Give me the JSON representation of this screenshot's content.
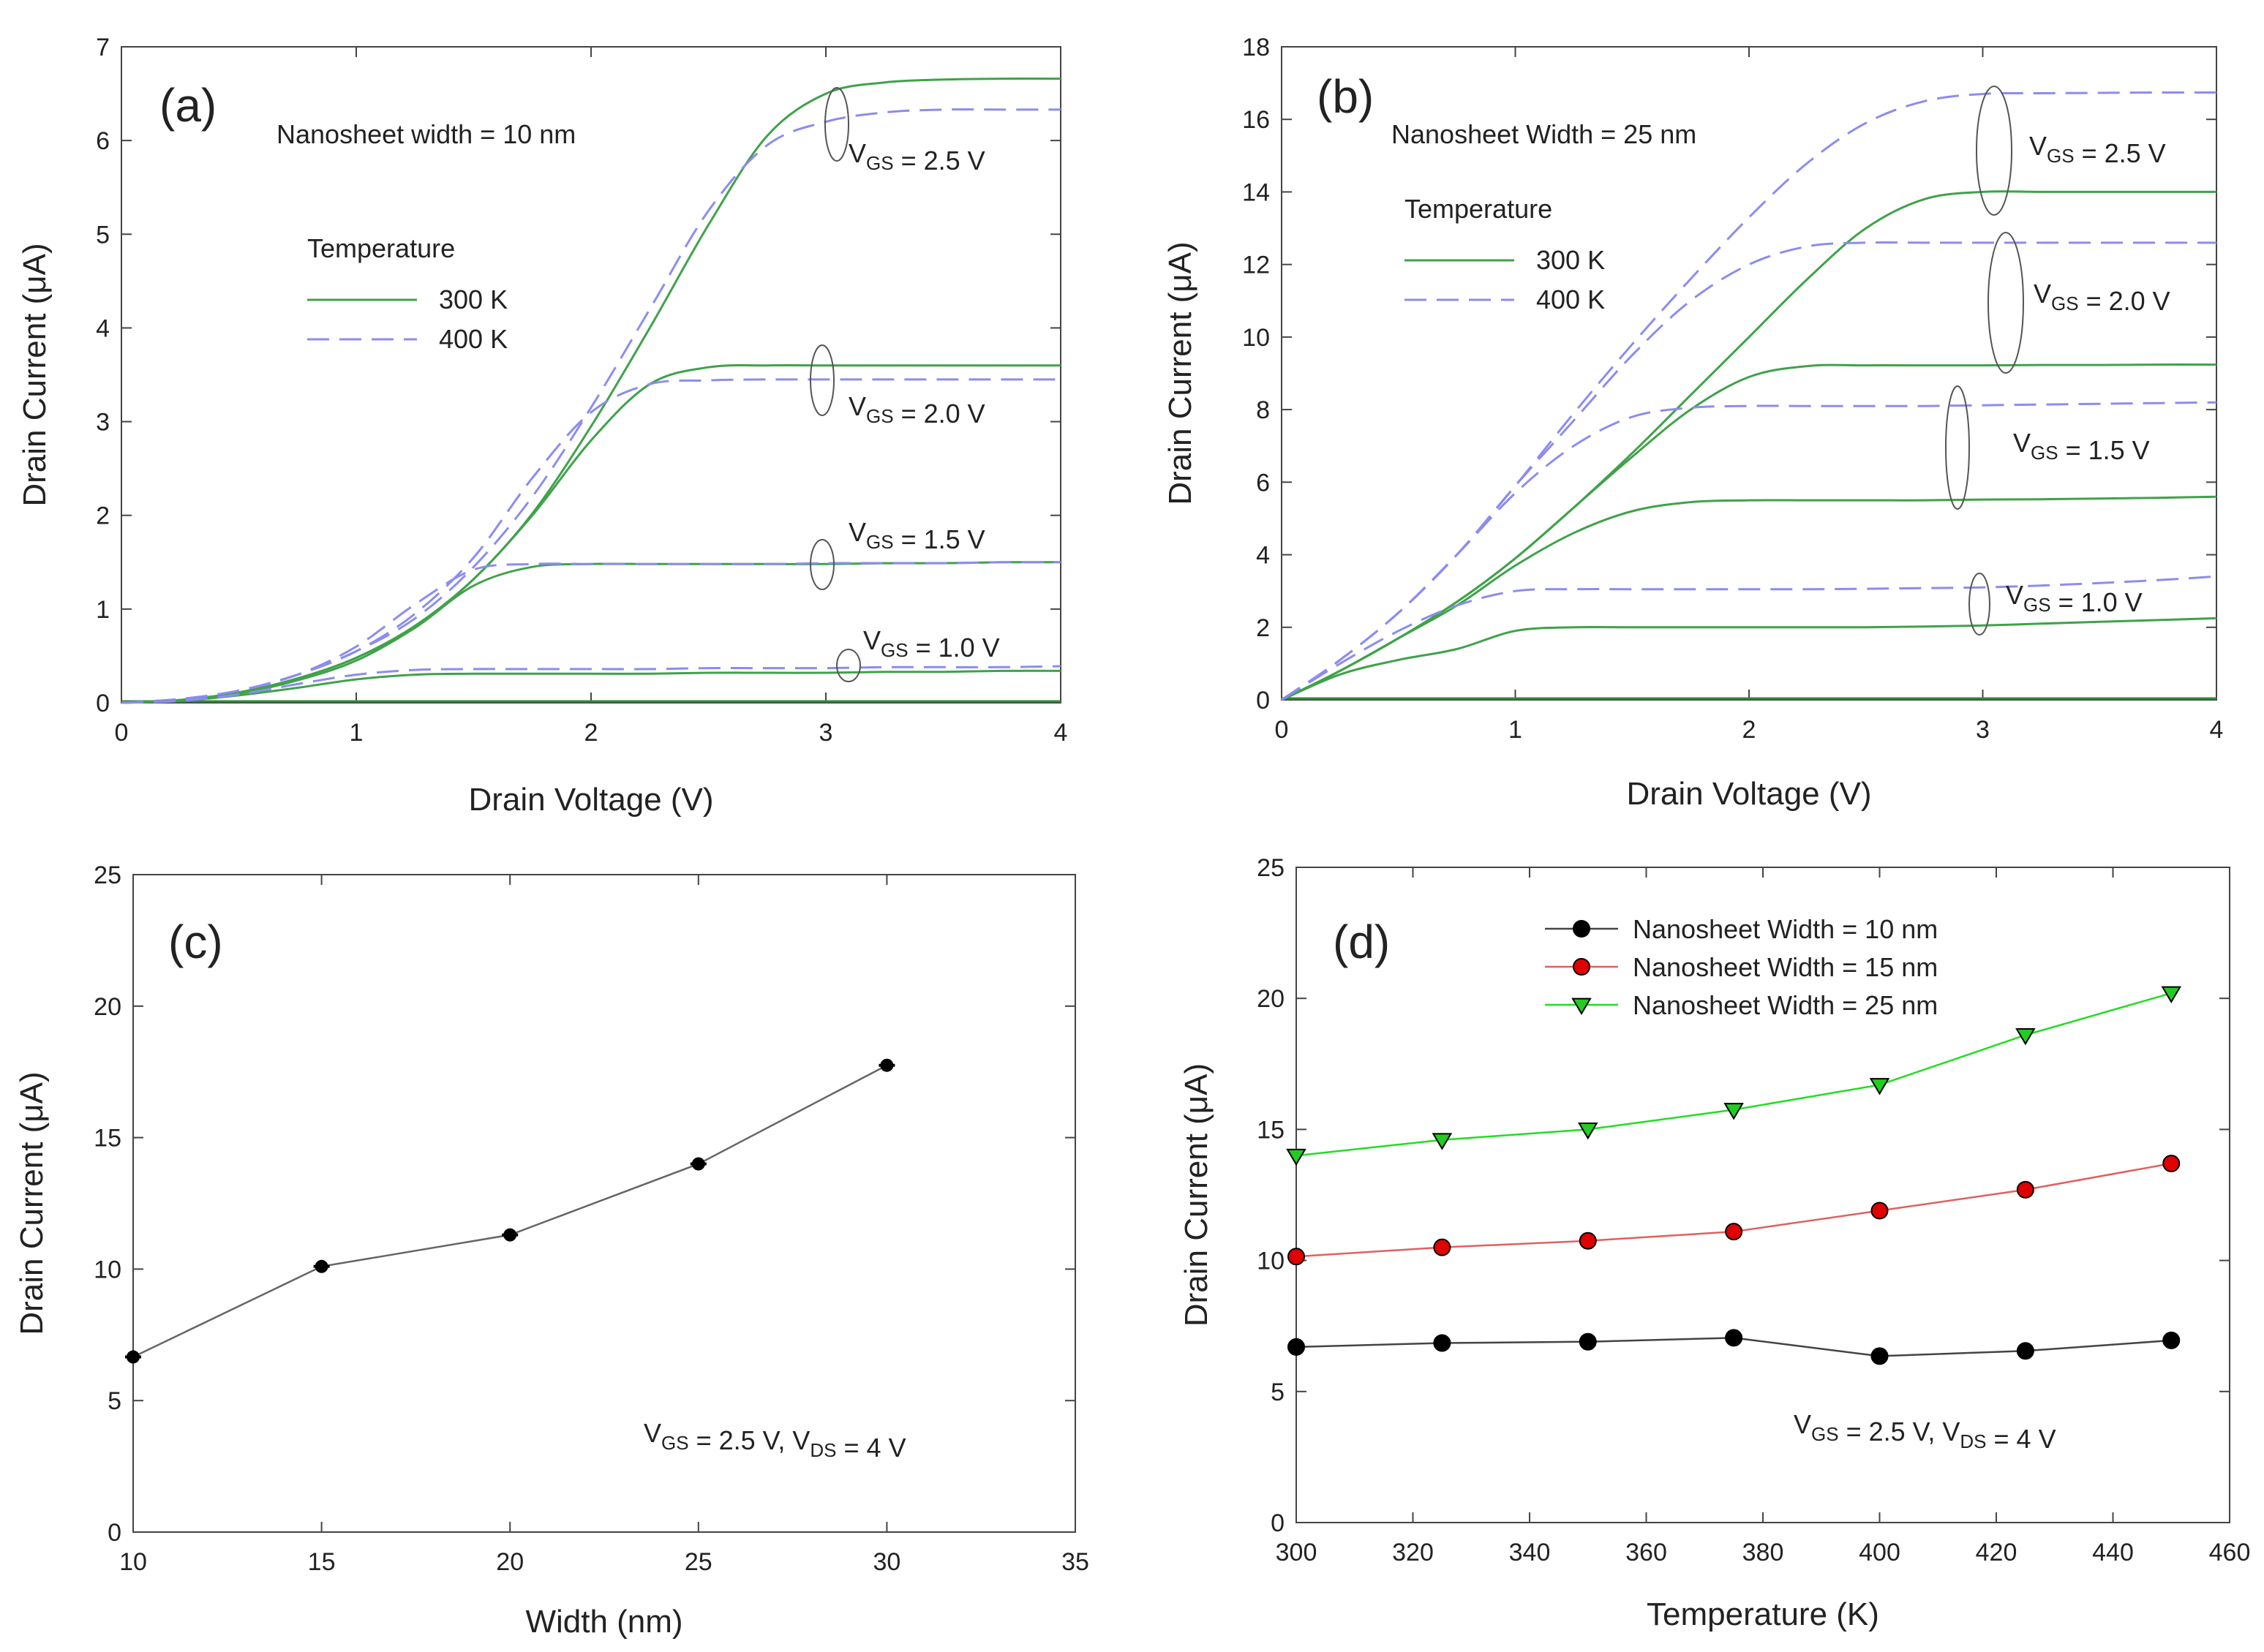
{
  "chart_data": [
    {
      "type": "line",
      "panel_label": "(a)",
      "subtitle": "Nanosheet width = 10 nm",
      "xlabel": "Drain Voltage (V)",
      "ylabel": "Drain Current (μA)",
      "xlim": [
        0,
        4
      ],
      "ylim": [
        0,
        7
      ],
      "xticks": [
        "0",
        "1",
        "2",
        "3",
        "4"
      ],
      "yticks": [
        "0",
        "1",
        "2",
        "3",
        "4",
        "5",
        "6",
        "7"
      ],
      "legend": {
        "title": "Temperature",
        "entries": [
          "300 K",
          "400 K"
        ]
      },
      "annotations": [
        "V_GS = 2.5 V",
        "V_GS = 2.0 V",
        "V_GS = 1.5 V",
        "V_GS = 1.0 V"
      ],
      "x": [
        0,
        0.25,
        0.5,
        0.75,
        1.0,
        1.25,
        1.5,
        1.75,
        2.0,
        2.25,
        2.5,
        2.75,
        3.0,
        3.25,
        3.5,
        3.75,
        4.0
      ],
      "series": [
        {
          "name": "300 K, V_GS = 2.5 V",
          "style": "solid",
          "values": [
            0,
            0.03,
            0.11,
            0.26,
            0.48,
            0.82,
            1.32,
            2.02,
            2.95,
            4.0,
            5.1,
            6.05,
            6.5,
            6.62,
            6.65,
            6.66,
            6.66
          ]
        },
        {
          "name": "400 K, V_GS = 2.5 V",
          "style": "dashed",
          "values": [
            0,
            0.04,
            0.13,
            0.3,
            0.55,
            0.9,
            1.45,
            2.2,
            3.15,
            4.2,
            5.25,
            5.95,
            6.2,
            6.3,
            6.33,
            6.33,
            6.33
          ]
        },
        {
          "name": "300 K, V_GS = 2.0 V",
          "style": "solid",
          "values": [
            0,
            0.03,
            0.11,
            0.26,
            0.48,
            0.82,
            1.32,
            2.0,
            2.8,
            3.4,
            3.58,
            3.6,
            3.6,
            3.6,
            3.6,
            3.6,
            3.6
          ]
        },
        {
          "name": "400 K, V_GS = 2.0 V",
          "style": "dashed",
          "values": [
            0,
            0.04,
            0.13,
            0.3,
            0.55,
            0.95,
            1.55,
            2.4,
            3.1,
            3.4,
            3.44,
            3.45,
            3.45,
            3.45,
            3.45,
            3.45,
            3.45
          ]
        },
        {
          "name": "300 K, V_GS = 1.5 V",
          "style": "solid",
          "values": [
            0,
            0.03,
            0.1,
            0.24,
            0.45,
            0.8,
            1.25,
            1.45,
            1.48,
            1.48,
            1.48,
            1.48,
            1.48,
            1.49,
            1.49,
            1.5,
            1.5
          ]
        },
        {
          "name": "400 K, V_GS = 1.5 V",
          "style": "dashed",
          "values": [
            0,
            0.04,
            0.13,
            0.3,
            0.6,
            1.05,
            1.42,
            1.48,
            1.48,
            1.48,
            1.48,
            1.48,
            1.49,
            1.49,
            1.49,
            1.5,
            1.5
          ]
        },
        {
          "name": "300 K, V_GS = 1.0 V",
          "style": "solid",
          "values": [
            0,
            0.02,
            0.08,
            0.16,
            0.25,
            0.3,
            0.31,
            0.31,
            0.31,
            0.31,
            0.32,
            0.32,
            0.32,
            0.33,
            0.33,
            0.34,
            0.34
          ]
        },
        {
          "name": "400 K, V_GS = 1.0 V",
          "style": "dashed",
          "values": [
            0,
            0.02,
            0.09,
            0.2,
            0.3,
            0.35,
            0.36,
            0.36,
            0.36,
            0.36,
            0.37,
            0.37,
            0.37,
            0.38,
            0.38,
            0.38,
            0.39
          ]
        }
      ]
    },
    {
      "type": "line",
      "panel_label": "(b)",
      "subtitle": "Nanosheet Width = 25 nm",
      "xlabel": "Drain Voltage (V)",
      "ylabel": "Drain Current (μA)",
      "xlim": [
        0,
        4
      ],
      "ylim": [
        0,
        18
      ],
      "xticks": [
        "0",
        "1",
        "2",
        "3",
        "4"
      ],
      "yticks": [
        "0",
        "2",
        "4",
        "6",
        "8",
        "10",
        "12",
        "14",
        "16",
        "18"
      ],
      "legend": {
        "title": "Temperature",
        "entries": [
          "300 K",
          "400 K"
        ]
      },
      "annotations": [
        "V_GS = 2.5 V",
        "V_GS = 2.0 V",
        "V_GS = 1.5 V",
        "V_GS = 1.0 V"
      ],
      "x": [
        0,
        0.25,
        0.5,
        0.75,
        1.0,
        1.25,
        1.5,
        1.75,
        2.0,
        2.25,
        2.5,
        2.75,
        3.0,
        3.25,
        3.5,
        3.75,
        4.0
      ],
      "series": [
        {
          "name": "300 K, V_GS = 2.5 V",
          "style": "solid",
          "values": [
            0,
            0.8,
            1.7,
            2.7,
            3.9,
            5.3,
            6.8,
            8.4,
            10.0,
            11.6,
            13.0,
            13.8,
            14.0,
            14.0,
            14.0,
            14.0,
            14.0
          ]
        },
        {
          "name": "400 K, V_GS = 2.5 V",
          "style": "dashed",
          "values": [
            0,
            1.1,
            2.4,
            4.0,
            5.9,
            7.9,
            9.8,
            11.6,
            13.3,
            14.8,
            15.9,
            16.5,
            16.7,
            16.72,
            16.73,
            16.74,
            16.74
          ]
        },
        {
          "name": "300 K, V_GS = 2.0 V",
          "style": "solid",
          "values": [
            0,
            0.8,
            1.7,
            2.7,
            3.9,
            5.3,
            6.7,
            8.0,
            8.9,
            9.2,
            9.22,
            9.22,
            9.22,
            9.23,
            9.23,
            9.24,
            9.24
          ]
        },
        {
          "name": "400 K, V_GS = 2.0 V",
          "style": "dashed",
          "values": [
            0,
            1.1,
            2.4,
            4.0,
            5.9,
            7.7,
            9.5,
            11.0,
            12.0,
            12.5,
            12.6,
            12.6,
            12.6,
            12.6,
            12.6,
            12.6,
            12.6
          ]
        },
        {
          "name": "300 K, V_GS = 1.5 V",
          "style": "solid",
          "values": [
            0,
            0.8,
            1.7,
            2.6,
            3.7,
            4.6,
            5.2,
            5.45,
            5.5,
            5.5,
            5.5,
            5.5,
            5.52,
            5.53,
            5.55,
            5.57,
            5.6
          ]
        },
        {
          "name": "400 K, V_GS = 1.5 V",
          "style": "dashed",
          "values": [
            0,
            1.1,
            2.4,
            4.0,
            5.7,
            7.0,
            7.8,
            8.05,
            8.1,
            8.1,
            8.1,
            8.1,
            8.12,
            8.14,
            8.16,
            8.18,
            8.2
          ]
        },
        {
          "name": "300 K, V_GS = 1.0 V",
          "style": "solid",
          "values": [
            0,
            0.7,
            1.1,
            1.4,
            1.9,
            2.0,
            2.0,
            2.0,
            2.0,
            2.0,
            2.0,
            2.02,
            2.05,
            2.1,
            2.15,
            2.2,
            2.25
          ]
        },
        {
          "name": "400 K, V_GS = 1.0 V",
          "style": "dashed",
          "values": [
            0,
            1.0,
            1.9,
            2.6,
            3.0,
            3.05,
            3.05,
            3.05,
            3.05,
            3.05,
            3.06,
            3.08,
            3.1,
            3.15,
            3.22,
            3.3,
            3.4
          ]
        }
      ]
    },
    {
      "type": "line",
      "panel_label": "(c)",
      "xlabel": "Width (nm)",
      "ylabel": "Drain Current (μA)",
      "xlim": [
        10,
        35
      ],
      "ylim": [
        0,
        25
      ],
      "xticks": [
        "10",
        "15",
        "20",
        "25",
        "30",
        "35"
      ],
      "yticks": [
        "0",
        "5",
        "10",
        "15",
        "20",
        "25"
      ],
      "annotation": "V_GS = 2.5 V, V_DS = 4 V",
      "x": [
        10,
        15,
        20,
        25,
        30
      ],
      "series": [
        {
          "name": "Drain Current",
          "values": [
            6.66,
            10.1,
            11.3,
            14.0,
            17.75
          ]
        }
      ]
    },
    {
      "type": "line",
      "panel_label": "(d)",
      "xlabel": "Temperature (K)",
      "ylabel": "Drain Current (μA)",
      "xlim": [
        300,
        460
      ],
      "ylim": [
        0,
        25
      ],
      "xticks": [
        "300",
        "320",
        "340",
        "360",
        "380",
        "400",
        "420",
        "440",
        "460"
      ],
      "yticks": [
        "0",
        "5",
        "10",
        "15",
        "20",
        "25"
      ],
      "annotation": "V_GS = 2.5 V, V_DS = 4 V",
      "x": [
        300,
        325,
        350,
        375,
        400,
        425,
        450
      ],
      "series": [
        {
          "name": "Nanosheet Width = 10 nm",
          "color": "#000000",
          "marker": "circle",
          "values": [
            6.7,
            6.85,
            6.9,
            7.05,
            6.35,
            6.55,
            6.95
          ]
        },
        {
          "name": "Nanosheet Width = 15 nm",
          "color": "#e00000",
          "marker": "circle",
          "values": [
            10.15,
            10.5,
            10.75,
            11.1,
            11.9,
            12.7,
            13.7
          ]
        },
        {
          "name": "Nanosheet Width = 25 nm",
          "color": "#22cc22",
          "marker": "triangle-down",
          "values": [
            14.0,
            14.6,
            15.0,
            15.75,
            16.7,
            18.6,
            20.2
          ]
        }
      ]
    }
  ]
}
